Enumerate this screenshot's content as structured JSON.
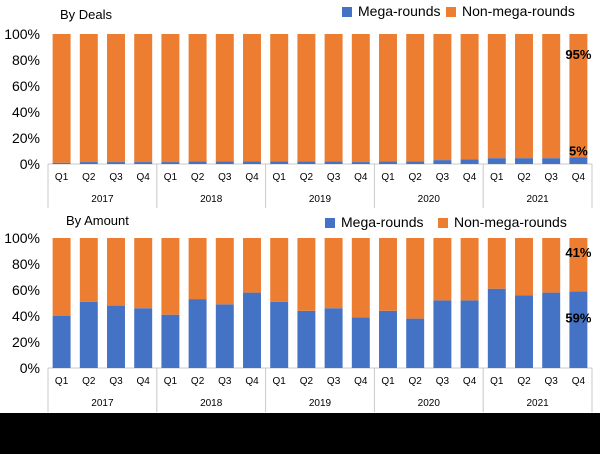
{
  "chart_data": [
    {
      "type": "bar",
      "stacked": true,
      "title": "By Deals",
      "legend_position": "top-right",
      "ylim": [
        0,
        100
      ],
      "y_ticks": [
        "0%",
        "20%",
        "40%",
        "60%",
        "80%",
        "100%"
      ],
      "categories": [
        "Q1",
        "Q2",
        "Q3",
        "Q4",
        "Q1",
        "Q2",
        "Q3",
        "Q4",
        "Q1",
        "Q2",
        "Q3",
        "Q4",
        "Q1",
        "Q2",
        "Q3",
        "Q4",
        "Q1",
        "Q2",
        "Q3",
        "Q4"
      ],
      "years": [
        "2017",
        "2018",
        "2019",
        "2020",
        "2021"
      ],
      "series": [
        {
          "name": "Mega-rounds",
          "color": "#4472C4",
          "values": [
            1,
            1.5,
            1.5,
            1.5,
            1.5,
            2,
            2,
            2,
            2,
            2,
            2,
            1.5,
            2,
            2,
            3,
            3.5,
            4.5,
            4.5,
            4.5,
            5
          ]
        },
        {
          "name": "Non-mega-rounds",
          "color": "#ED7D31",
          "values": [
            99,
            98.5,
            98.5,
            98.5,
            98.5,
            98,
            98,
            98,
            98,
            98,
            98,
            98.5,
            98,
            98,
            97,
            96.5,
            95.5,
            95.5,
            95.5,
            95
          ]
        }
      ],
      "annotations": [
        {
          "series": "Non-mega-rounds",
          "index": 19,
          "text": "95%"
        },
        {
          "series": "Mega-rounds",
          "index": 19,
          "text": "5%"
        }
      ]
    },
    {
      "type": "bar",
      "stacked": true,
      "title": "By Amount",
      "legend_position": "top-right",
      "ylim": [
        0,
        100
      ],
      "y_ticks": [
        "0%",
        "20%",
        "40%",
        "60%",
        "80%",
        "100%"
      ],
      "categories": [
        "Q1",
        "Q2",
        "Q3",
        "Q4",
        "Q1",
        "Q2",
        "Q3",
        "Q4",
        "Q1",
        "Q2",
        "Q3",
        "Q4",
        "Q1",
        "Q2",
        "Q3",
        "Q4",
        "Q1",
        "Q2",
        "Q3",
        "Q4"
      ],
      "years": [
        "2017",
        "2018",
        "2019",
        "2020",
        "2021"
      ],
      "series": [
        {
          "name": "Mega-rounds",
          "color": "#4472C4",
          "values": [
            40,
            51,
            48,
            46,
            41,
            53,
            49,
            58,
            51,
            44,
            46,
            39,
            44,
            38,
            52,
            52,
            61,
            56,
            58,
            59
          ]
        },
        {
          "name": "Non-mega-rounds",
          "color": "#ED7D31",
          "values": [
            60,
            49,
            52,
            54,
            59,
            47,
            51,
            42,
            49,
            56,
            54,
            61,
            56,
            62,
            48,
            48,
            39,
            44,
            42,
            41
          ]
        }
      ],
      "annotations": [
        {
          "series": "Non-mega-rounds",
          "index": 19,
          "text": "41%"
        },
        {
          "series": "Mega-rounds",
          "index": 19,
          "text": "59%"
        }
      ]
    }
  ]
}
